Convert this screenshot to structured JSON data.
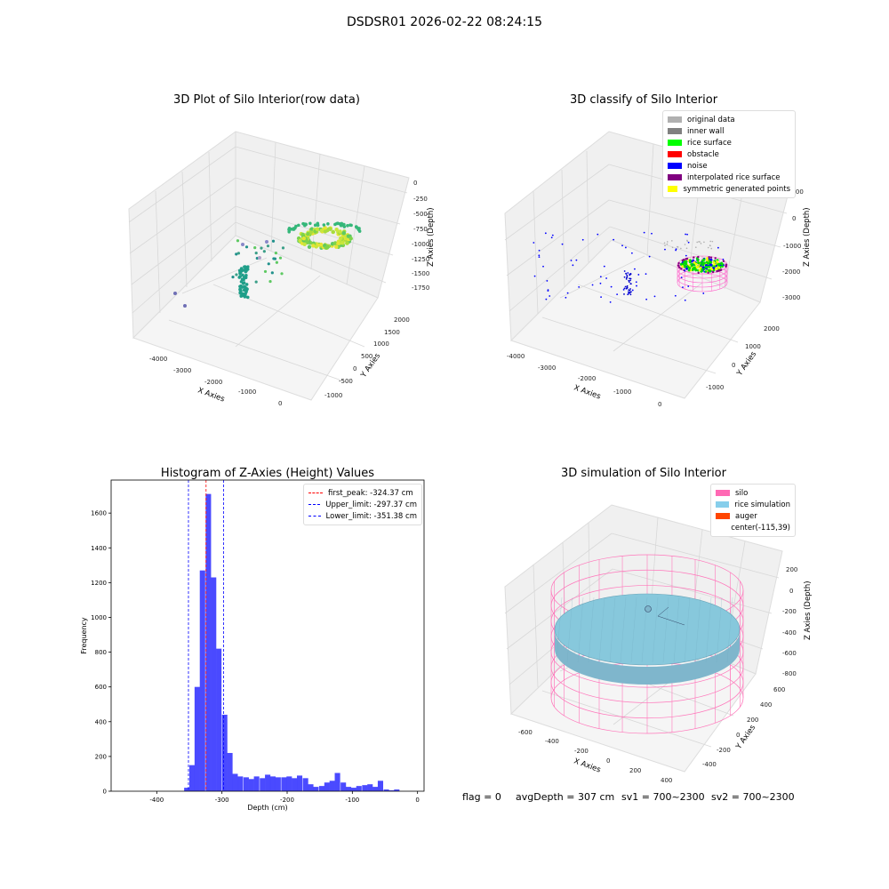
{
  "figure": {
    "suptitle": "DSDSR01 2026-02-22 08:24:15",
    "footer": {
      "flag": "flag = 0",
      "avg_depth": "avgDepth = 307 cm",
      "sv1": "sv1 = 700~2300",
      "sv2": "sv2 = 700~2300"
    }
  },
  "chart_data": [
    {
      "type": "scatter3d",
      "title": "3D Plot of Silo Interior(row data)",
      "xlabel": "X Axies",
      "ylabel": "Y Axies",
      "zlabel": "Z Axies (Depth)",
      "x_ticks": [
        "-4000",
        "-3000",
        "-2000",
        "-1000",
        "0"
      ],
      "y_ticks": [
        "-1000",
        "-500",
        "0",
        "500",
        "1000",
        "1500",
        "2000"
      ],
      "z_ticks": [
        "0",
        "-250",
        "-500",
        "-750",
        "-1000",
        "-1250",
        "-1500",
        "-1750"
      ]
    },
    {
      "type": "scatter3d",
      "title": "3D classify of Silo Interior",
      "xlabel": "X Axies",
      "ylabel": "Y Axies",
      "zlabel": "Z Axies (Depth)",
      "x_ticks": [
        "-4000",
        "-3000",
        "-2000",
        "-1000",
        "0"
      ],
      "y_ticks": [
        "-1000",
        "0",
        "1000",
        "2000"
      ],
      "z_ticks": [
        "1000",
        "0",
        "-1000",
        "-2000",
        "-3000"
      ],
      "legend": [
        {
          "label": "original data",
          "color": "#b0b0b0"
        },
        {
          "label": "inner wall",
          "color": "#808080"
        },
        {
          "label": "rice surface",
          "color": "#00ff00"
        },
        {
          "label": "obstacle",
          "color": "#ff0000"
        },
        {
          "label": "noise",
          "color": "#0000ff"
        },
        {
          "label": "interpolated rice surface",
          "color": "#800080"
        },
        {
          "label": "symmetric generated points",
          "color": "#ffff00"
        }
      ]
    },
    {
      "type": "bar",
      "title": "Histogram of Z-Axies (Height) Values",
      "xlabel": "Depth (cm)",
      "ylabel": "Frequency",
      "xlim": [
        -470,
        10
      ],
      "ylim": [
        0,
        1790
      ],
      "x_ticks": [
        -400,
        -300,
        -200,
        -100,
        0
      ],
      "y_ticks": [
        0,
        200,
        400,
        600,
        800,
        1000,
        1200,
        1400,
        1600
      ],
      "bin_width": 8.3,
      "bins": [
        [
          -358,
          20
        ],
        [
          -350,
          150
        ],
        [
          -342,
          600
        ],
        [
          -334,
          1270
        ],
        [
          -325,
          1710
        ],
        [
          -317,
          1230
        ],
        [
          -309,
          820
        ],
        [
          -300,
          440
        ],
        [
          -292,
          220
        ],
        [
          -284,
          100
        ],
        [
          -276,
          85
        ],
        [
          -267,
          80
        ],
        [
          -259,
          70
        ],
        [
          -251,
          85
        ],
        [
          -242,
          75
        ],
        [
          -234,
          95
        ],
        [
          -226,
          85
        ],
        [
          -218,
          80
        ],
        [
          -209,
          80
        ],
        [
          -201,
          85
        ],
        [
          -193,
          75
        ],
        [
          -185,
          90
        ],
        [
          -176,
          75
        ],
        [
          -168,
          40
        ],
        [
          -160,
          25
        ],
        [
          -151,
          30
        ],
        [
          -143,
          50
        ],
        [
          -135,
          60
        ],
        [
          -127,
          105
        ],
        [
          -118,
          50
        ],
        [
          -110,
          25
        ],
        [
          -102,
          20
        ],
        [
          -94,
          30
        ],
        [
          -85,
          35
        ],
        [
          -77,
          40
        ],
        [
          -69,
          25
        ],
        [
          -61,
          60
        ],
        [
          -52,
          10
        ],
        [
          -44,
          5
        ],
        [
          -36,
          10
        ]
      ],
      "vlines": [
        {
          "label": "first_peak: -324.37 cm",
          "value": -324.37,
          "color": "#ff0000"
        },
        {
          "label": "Upper_limit: -297.37 cm",
          "value": -297.37,
          "color": "#0000ff"
        },
        {
          "label": "Lower_limit: -351.38 cm",
          "value": -351.38,
          "color": "#0000ff"
        }
      ],
      "bar_color": "#4040ff"
    },
    {
      "type": "surface3d",
      "title": "3D simulation of Silo Interior",
      "xlabel": "X Axies",
      "ylabel": "Y Axies",
      "zlabel": "Z Axies (Depth)",
      "x_ticks": [
        "-600",
        "-400",
        "-200",
        "0",
        "200",
        "400"
      ],
      "y_ticks": [
        "-400",
        "-200",
        "0",
        "200",
        "400",
        "600"
      ],
      "z_ticks": [
        "200",
        "0",
        "-200",
        "-400",
        "-600",
        "-800"
      ],
      "legend": [
        {
          "label": "silo",
          "color": "#ff69b4"
        },
        {
          "label": "rice simulation",
          "color": "#87ceeb"
        },
        {
          "label": "auger",
          "color": "#ff4500"
        },
        {
          "label": "center(-115,39)",
          "color": ""
        }
      ]
    }
  ]
}
